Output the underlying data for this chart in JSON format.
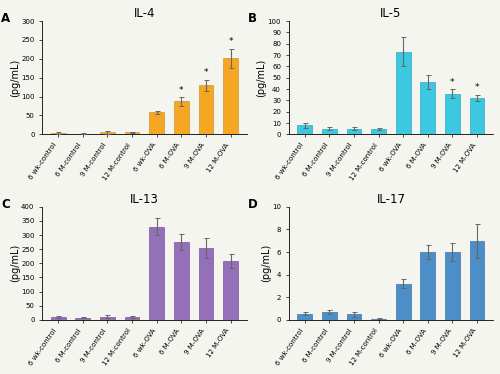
{
  "panels": [
    {
      "label": "A",
      "title": "IL-4",
      "ylabel": "(pg/mL)",
      "ylim": [
        0,
        300
      ],
      "yticks": [
        0,
        50,
        100,
        150,
        200,
        250,
        300
      ],
      "bar_color": "#F5A623",
      "edge_color": "#C8861A",
      "categories": [
        "6 wk-control",
        "6 M-control",
        "9 M-control",
        "12 M-control",
        "6 wk-OVA",
        "6 M-OVA",
        "9 M-OVA",
        "12 M-OVA"
      ],
      "values": [
        3,
        2,
        5,
        5,
        58,
        87,
        130,
        202
      ],
      "errors": [
        2,
        1,
        3,
        2,
        5,
        12,
        15,
        25
      ],
      "star": [
        false,
        false,
        false,
        false,
        false,
        true,
        true,
        true
      ]
    },
    {
      "label": "B",
      "title": "IL-5",
      "ylabel": "(pg/mL)",
      "ylim": [
        0,
        100
      ],
      "yticks": [
        0,
        10,
        20,
        30,
        40,
        50,
        60,
        70,
        80,
        90,
        100
      ],
      "bar_color": "#3BC8E0",
      "edge_color": "#1A9AB8",
      "categories": [
        "6 wk-control",
        "6 M-control",
        "9 M-control",
        "12 M-control",
        "6 wk-OVA",
        "6 M-OVA",
        "9 M-OVA",
        "12 M-OVA"
      ],
      "values": [
        8,
        5,
        5,
        4.5,
        73,
        46,
        36,
        32
      ],
      "errors": [
        2,
        1.5,
        1.5,
        1,
        13,
        6,
        4,
        3
      ],
      "star": [
        false,
        false,
        false,
        false,
        false,
        false,
        true,
        true
      ]
    },
    {
      "label": "C",
      "title": "IL-13",
      "ylabel": "(pg/mL)",
      "ylim": [
        0,
        400
      ],
      "yticks": [
        0,
        50,
        100,
        150,
        200,
        250,
        300,
        350,
        400
      ],
      "bar_color": "#9370B8",
      "edge_color": "#6A3D8F",
      "categories": [
        "6 wk-control",
        "6 M-control",
        "9 M-control",
        "12 M-control",
        "6 wk-OVA",
        "6 M-OVA",
        "9 M-OVA",
        "12 M-OVA"
      ],
      "values": [
        10,
        8,
        12,
        10,
        330,
        275,
        253,
        208
      ],
      "errors": [
        3,
        2,
        4,
        3,
        30,
        28,
        35,
        25
      ],
      "star": [
        false,
        false,
        false,
        false,
        false,
        false,
        false,
        false
      ]
    },
    {
      "label": "D",
      "title": "IL-17",
      "ylabel": "(pg/mL)",
      "ylim": [
        0,
        10
      ],
      "yticks": [
        0,
        2,
        4,
        6,
        8,
        10
      ],
      "bar_color": "#4B8EC8",
      "edge_color": "#2A6099",
      "categories": [
        "6 wk-control",
        "6 M-control",
        "9 M-control",
        "12 M-control",
        "6 wk-OVA",
        "6 M-OVA",
        "9 M-OVA",
        "12 M-OVA"
      ],
      "values": [
        0.55,
        0.7,
        0.5,
        0.1,
        3.2,
        6.0,
        6.0,
        7.0
      ],
      "errors": [
        0.15,
        0.2,
        0.2,
        0.05,
        0.4,
        0.6,
        0.8,
        1.5
      ],
      "star": [
        false,
        false,
        false,
        false,
        false,
        false,
        false,
        false
      ]
    }
  ],
  "fig_facecolor": "#F5F5F0",
  "ax_facecolor": "#F5F5F0",
  "tick_label_fontsize": 5.0,
  "axis_label_fontsize": 7.0,
  "title_fontsize": 8.5,
  "panel_label_fontsize": 8.5,
  "bar_width": 0.6
}
